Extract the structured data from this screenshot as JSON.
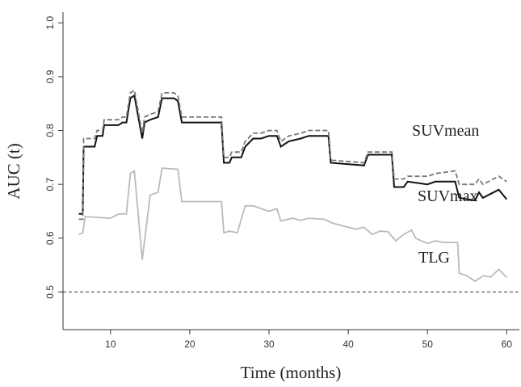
{
  "chart_data": {
    "type": "line",
    "x_label": "Time (months)",
    "y_label": "AUC (t)",
    "xlim": [
      4,
      61.6
    ],
    "ylim": [
      0.43,
      1.02
    ],
    "xticks": [
      10,
      20,
      30,
      40,
      50,
      60
    ],
    "yticks": [
      0.5,
      0.6,
      0.7,
      0.8,
      0.9,
      {
        "value": 1,
        "label": "1.0"
      }
    ],
    "reference_line": {
      "y": 0.5,
      "color": "#333333",
      "linestyle": "dashed"
    },
    "series": [
      {
        "name": "SUVmean",
        "color": "#777777",
        "linestyle": "dashed",
        "x": [
          6,
          6.5,
          6.6,
          8,
          8.3,
          9,
          9.2,
          11,
          11.5,
          12,
          12.5,
          13,
          14,
          14.3,
          15,
          16,
          16.5,
          18,
          18.5,
          19,
          24,
          24.3,
          25,
          25.3,
          26.5,
          27,
          28,
          29,
          30,
          31,
          31.5,
          32.5,
          34,
          35,
          37.5,
          37.8,
          42,
          42.5,
          45.5,
          45.8,
          47,
          47.5,
          50,
          51,
          53.5,
          54,
          56,
          56.5,
          57,
          59,
          60
        ],
        "values": [
          0.635,
          0.635,
          0.785,
          0.785,
          0.8,
          0.8,
          0.82,
          0.82,
          0.825,
          0.825,
          0.87,
          0.875,
          0.795,
          0.825,
          0.83,
          0.835,
          0.87,
          0.87,
          0.865,
          0.825,
          0.825,
          0.75,
          0.75,
          0.76,
          0.76,
          0.78,
          0.795,
          0.795,
          0.8,
          0.8,
          0.78,
          0.79,
          0.795,
          0.8,
          0.8,
          0.745,
          0.74,
          0.76,
          0.76,
          0.71,
          0.71,
          0.715,
          0.715,
          0.72,
          0.725,
          0.7,
          0.7,
          0.71,
          0.7,
          0.715,
          0.705
        ]
      },
      {
        "name": "SUVmax",
        "color": "#111111",
        "linestyle": "solid",
        "x": [
          6,
          6.5,
          6.6,
          8,
          8.3,
          9,
          9.2,
          11,
          11.5,
          12,
          12.5,
          13,
          14,
          14.3,
          15,
          16,
          16.5,
          18,
          18.5,
          19,
          24,
          24.3,
          25,
          25.3,
          26.5,
          27,
          28,
          29,
          30,
          31,
          31.5,
          32.5,
          34,
          35,
          37.5,
          37.8,
          42,
          42.5,
          45.5,
          45.8,
          47,
          47.5,
          50,
          51,
          53.5,
          54,
          56,
          56.5,
          57,
          59,
          60
        ],
        "values": [
          0.645,
          0.645,
          0.77,
          0.77,
          0.79,
          0.79,
          0.81,
          0.81,
          0.815,
          0.815,
          0.86,
          0.865,
          0.785,
          0.815,
          0.82,
          0.825,
          0.86,
          0.86,
          0.855,
          0.815,
          0.815,
          0.74,
          0.74,
          0.75,
          0.75,
          0.77,
          0.785,
          0.785,
          0.79,
          0.79,
          0.77,
          0.78,
          0.785,
          0.79,
          0.79,
          0.74,
          0.735,
          0.755,
          0.755,
          0.695,
          0.695,
          0.705,
          0.7,
          0.705,
          0.705,
          0.675,
          0.67,
          0.685,
          0.675,
          0.69,
          0.672
        ]
      },
      {
        "name": "TLG",
        "color": "#bbbbbb",
        "linestyle": "solid",
        "x": [
          6,
          6.5,
          6.8,
          10,
          11,
          12,
          12.5,
          13,
          14,
          15,
          16,
          16.5,
          18.5,
          19,
          24,
          24.3,
          25,
          26,
          27,
          28,
          29,
          30,
          31,
          31.5,
          33,
          34,
          35,
          37,
          38,
          40,
          41,
          42,
          43,
          44,
          45,
          46,
          47,
          48,
          48.5,
          50,
          51,
          52,
          53.8,
          54,
          55,
          56,
          57,
          58,
          59,
          60
        ],
        "values": [
          0.607,
          0.61,
          0.64,
          0.637,
          0.645,
          0.645,
          0.72,
          0.725,
          0.56,
          0.68,
          0.685,
          0.73,
          0.728,
          0.668,
          0.668,
          0.61,
          0.613,
          0.61,
          0.66,
          0.66,
          0.655,
          0.65,
          0.655,
          0.632,
          0.637,
          0.633,
          0.637,
          0.635,
          0.628,
          0.62,
          0.617,
          0.62,
          0.607,
          0.613,
          0.612,
          0.595,
          0.607,
          0.615,
          0.6,
          0.59,
          0.595,
          0.592,
          0.592,
          0.535,
          0.53,
          0.52,
          0.53,
          0.528,
          0.542,
          0.527
        ]
      }
    ]
  }
}
